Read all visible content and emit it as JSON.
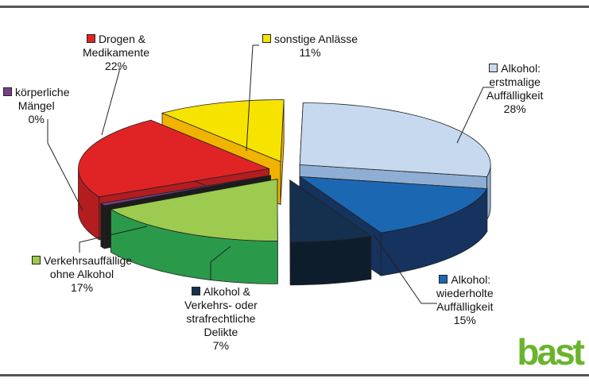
{
  "chart_data": {
    "type": "pie",
    "style": "3d-exploded",
    "slices": [
      {
        "lines": [
          "Alkohol:",
          "erstmalige",
          "Auffälligkeit"
        ],
        "value": 28,
        "value_label": "28%",
        "color": "#c6d9ef",
        "side": "#8faed3"
      },
      {
        "lines": [
          "Alkohol:",
          "wiederholte",
          "Auffälligkeit"
        ],
        "value": 15,
        "value_label": "15%",
        "color": "#1c67b2",
        "side": "#16325e"
      },
      {
        "lines": [
          "Alkohol &",
          "Verkehrs- oder",
          "strafrechtliche",
          "Delikte"
        ],
        "value": 7,
        "value_label": "7%",
        "color": "#15304e",
        "side": "#0e1d2c"
      },
      {
        "lines": [
          "Verkehrsauffällige",
          "ohne Alkohol"
        ],
        "value": 17,
        "value_label": "17%",
        "color": "#9ccb4f",
        "side": "#2a9a4a"
      },
      {
        "lines": [
          "körperliche",
          "Mängel"
        ],
        "value": 0,
        "value_label": "0%",
        "color": "#7a3e88",
        "side": "#1c1c1c"
      },
      {
        "lines": [
          "Drogen &",
          "Medikamente"
        ],
        "value": 22,
        "value_label": "22%",
        "color": "#e02426",
        "side": "#b31d1f"
      },
      {
        "lines": [
          "sonstige Anlässe"
        ],
        "value": 11,
        "value_label": "11%",
        "color": "#f7e300",
        "side": "#f0b400"
      }
    ]
  },
  "logo": {
    "text": "bast",
    "color": "#6ab42d"
  }
}
